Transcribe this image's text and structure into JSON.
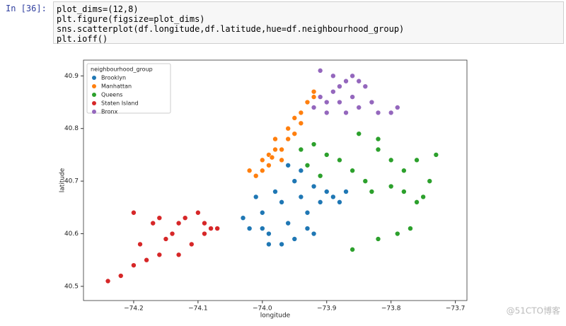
{
  "cell": {
    "prompt": "In [36]:",
    "code": [
      "plot_dims=(12,8)",
      "plt.figure(figsize=plot_dims)",
      "sns.scatterplot(df.longitude,df.latitude,hue=df.neighbourhood_group)",
      "plt.ioff()"
    ]
  },
  "watermark": "@51CTO博客",
  "chart_data": {
    "type": "scatter",
    "x_label": "longitude",
    "y_label": "latitude",
    "legend_title": "neighbourhood_group",
    "legend": "upper left",
    "xlim": [
      -74.278,
      -73.682
    ],
    "ylim": [
      40.473,
      40.93
    ],
    "xticks": [
      {
        "value": -74.2,
        "label": "−74.2"
      },
      {
        "value": -74.1,
        "label": "−74.1"
      },
      {
        "value": -74.0,
        "label": "−74.0"
      },
      {
        "value": -73.9,
        "label": "−73.9"
      },
      {
        "value": -73.8,
        "label": "−73.8"
      },
      {
        "value": -73.7,
        "label": "−73.7"
      }
    ],
    "yticks": [
      40.5,
      40.6,
      40.7,
      40.8,
      40.9
    ],
    "series": [
      {
        "name": "Brooklyn",
        "color": "#1f77b4",
        "x": [
          -74.03,
          -74.02,
          -74.0,
          -73.99,
          -73.98,
          -73.97,
          -73.96,
          -73.95,
          -73.94,
          -73.93,
          -73.92,
          -73.91,
          -73.9,
          -73.89,
          -73.88,
          -73.95,
          -73.97,
          -73.99,
          -73.93,
          -74.01,
          -73.96,
          -73.94,
          -73.87,
          -73.92,
          -74.0
        ],
        "values": [
          40.63,
          40.61,
          40.64,
          40.6,
          40.68,
          40.66,
          40.62,
          40.7,
          40.67,
          40.64,
          40.69,
          40.66,
          40.68,
          40.67,
          40.66,
          40.59,
          40.58,
          40.58,
          40.61,
          40.67,
          40.73,
          40.72,
          40.68,
          40.6,
          40.61
        ]
      },
      {
        "name": "Manhattan",
        "color": "#ff7f0e",
        "x": [
          -74.01,
          -74.0,
          -73.99,
          -74.0,
          -73.99,
          -73.98,
          -73.97,
          -73.98,
          -73.96,
          -73.95,
          -73.96,
          -73.94,
          -73.95,
          -73.94,
          -73.93,
          -73.92,
          -73.92,
          -74.02,
          -73.97,
          -73.985
        ],
        "values": [
          40.71,
          40.72,
          40.73,
          40.74,
          40.75,
          40.76,
          40.76,
          40.78,
          40.78,
          40.79,
          40.8,
          40.81,
          40.82,
          40.83,
          40.85,
          40.86,
          40.87,
          40.72,
          40.74,
          40.745
        ]
      },
      {
        "name": "Queens",
        "color": "#2ca02c",
        "x": [
          -73.94,
          -73.92,
          -73.9,
          -73.88,
          -73.86,
          -73.84,
          -73.82,
          -73.8,
          -73.78,
          -73.76,
          -73.74,
          -73.75,
          -73.78,
          -73.8,
          -73.83,
          -73.85,
          -73.82,
          -73.91,
          -73.93,
          -73.73,
          -73.76,
          -73.82,
          -73.79,
          -73.77,
          -73.86
        ],
        "values": [
          40.76,
          40.77,
          40.75,
          40.74,
          40.72,
          40.7,
          40.76,
          40.74,
          40.72,
          40.74,
          40.7,
          40.67,
          40.68,
          40.69,
          40.68,
          40.79,
          40.78,
          40.71,
          40.73,
          40.75,
          40.66,
          40.59,
          40.6,
          40.61,
          40.57
        ]
      },
      {
        "name": "Staten Island",
        "color": "#d62728",
        "x": [
          -74.24,
          -74.22,
          -74.2,
          -74.18,
          -74.19,
          -74.16,
          -74.15,
          -74.17,
          -74.14,
          -74.13,
          -74.12,
          -74.1,
          -74.09,
          -74.08,
          -74.07,
          -74.09,
          -74.11,
          -74.13,
          -74.16,
          -74.2
        ],
        "values": [
          40.51,
          40.52,
          40.54,
          40.55,
          40.58,
          40.56,
          40.59,
          40.62,
          40.6,
          40.62,
          40.63,
          40.64,
          40.62,
          40.61,
          40.61,
          40.6,
          40.58,
          40.56,
          40.63,
          40.64
        ]
      },
      {
        "name": "Bronx",
        "color": "#9467bd",
        "x": [
          -73.92,
          -73.91,
          -73.9,
          -73.89,
          -73.88,
          -73.87,
          -73.86,
          -73.85,
          -73.84,
          -73.86,
          -73.88,
          -73.85,
          -73.83,
          -73.82,
          -73.8,
          -73.79,
          -73.9,
          -73.87,
          -73.89,
          -73.91
        ],
        "values": [
          40.84,
          40.86,
          40.85,
          40.87,
          40.88,
          40.89,
          40.9,
          40.89,
          40.88,
          40.86,
          40.85,
          40.84,
          40.85,
          40.83,
          40.83,
          40.84,
          40.83,
          40.83,
          40.9,
          40.91
        ]
      }
    ]
  }
}
